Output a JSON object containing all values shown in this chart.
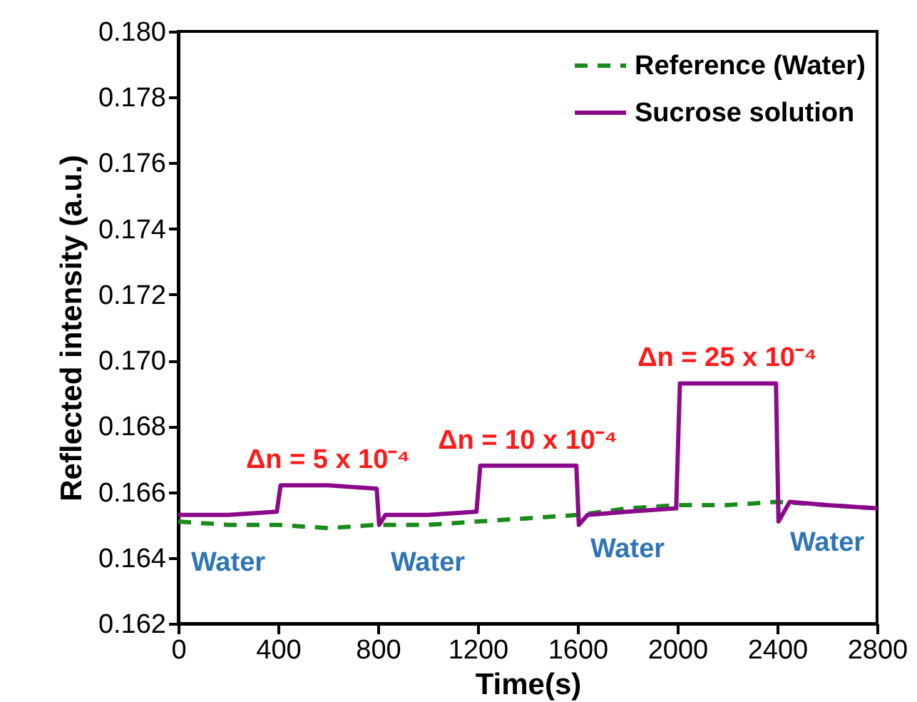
{
  "chart_data": {
    "type": "line",
    "xlabel": "Time(s)",
    "ylabel": "Reflected intensity (a.u.)",
    "xlim": [
      0,
      2800
    ],
    "xticks": [
      0,
      400,
      800,
      {
        "value": 1200,
        "label": "1200"
      },
      {
        "value": 1600,
        "label": "1600"
      },
      {
        "value": 2000,
        "label": "2000"
      },
      {
        "value": 2400,
        "label": "2400"
      },
      {
        "value": 2800,
        "label": "2800"
      }
    ],
    "ylim": [
      0.162,
      0.18
    ],
    "yticks": [
      0.162,
      0.164,
      0.166,
      0.168,
      {
        "value": 0.17,
        "label": "0.170"
      },
      0.172,
      0.174,
      0.176,
      0.178,
      {
        "value": 0.18,
        "label": "0.180"
      }
    ],
    "grid": false,
    "legend": "top right",
    "series": [
      {
        "name": "Reference (Water)",
        "color": "#1a8a1a",
        "line_style": "dashed",
        "x": [
          0,
          200,
          400,
          600,
          800,
          1000,
          1200,
          1400,
          1600,
          1800,
          2000,
          2200,
          2400,
          2600,
          2800
        ],
        "values": [
          0.1651,
          0.165,
          0.165,
          0.1649,
          0.165,
          0.165,
          0.1651,
          0.1652,
          0.1653,
          0.1655,
          0.1656,
          0.1656,
          0.1657,
          0.1656,
          0.1655
        ]
      },
      {
        "name": "Sucrose solution",
        "color": "#8b0a8b",
        "line_style": "solid",
        "x": [
          0,
          200,
          395,
          410,
          600,
          795,
          805,
          830,
          1000,
          1195,
          1210,
          1400,
          1595,
          1605,
          1640,
          1800,
          1995,
          2010,
          2200,
          2395,
          2405,
          2450,
          2600,
          2800
        ],
        "values": [
          0.1653,
          0.1653,
          0.1654,
          0.1662,
          0.1662,
          0.1661,
          0.165,
          0.1653,
          0.1653,
          0.1654,
          0.1668,
          0.1668,
          0.1668,
          0.165,
          0.1653,
          0.1654,
          0.1655,
          0.1693,
          0.1693,
          0.1693,
          0.1651,
          0.1657,
          0.1656,
          0.1655
        ]
      }
    ],
    "annotations": [
      {
        "text": "Δn = 5 x 10⁻⁴",
        "x": 600,
        "y": 0.1662
      },
      {
        "text": "Δn = 10 x 10⁻⁴",
        "x": 1400,
        "y": 0.1668
      },
      {
        "text": "Δn = 25 x 10⁻⁴",
        "x": 2200,
        "y": 0.1693
      },
      {
        "text": "Water",
        "x": 200,
        "y": 0.165
      },
      {
        "text": "Water",
        "x": 1000,
        "y": 0.165
      },
      {
        "text": "Water",
        "x": 1800,
        "y": 0.1654
      },
      {
        "text": "Water",
        "x": 2600,
        "y": 0.1656
      }
    ]
  }
}
